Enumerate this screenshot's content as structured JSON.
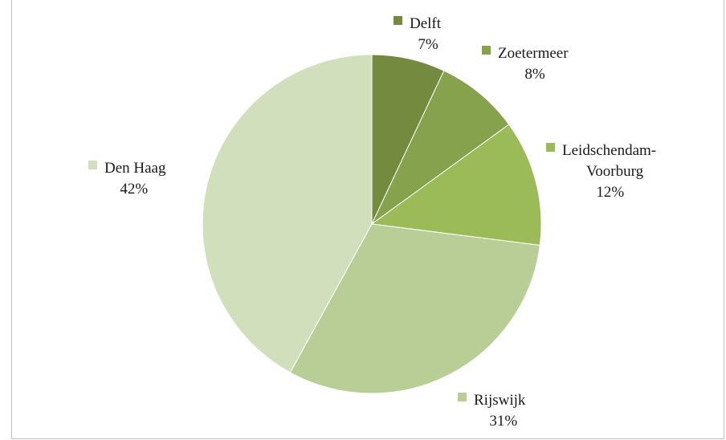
{
  "chart_data": {
    "type": "pie",
    "title": "",
    "start_angle_deg": 0,
    "direction": "clockwise",
    "slices": [
      {
        "label_lines": [
          "Delft"
        ],
        "percent_label": "7%",
        "value": 7,
        "color": "#748b3f"
      },
      {
        "label_lines": [
          "Zoetermeer"
        ],
        "percent_label": "8%",
        "value": 8,
        "color": "#87a24c"
      },
      {
        "label_lines": [
          "Leidschendam-",
          "Voorburg"
        ],
        "percent_label": "12%",
        "value": 12,
        "color": "#9bbb59"
      },
      {
        "label_lines": [
          "Rijswijk"
        ],
        "percent_label": "31%",
        "value": 31,
        "color": "#b9cd96"
      },
      {
        "label_lines": [
          "Den Haag"
        ],
        "percent_label": "42%",
        "value": 42,
        "color": "#d1dfbd"
      }
    ],
    "legend": "labels beside slices"
  }
}
